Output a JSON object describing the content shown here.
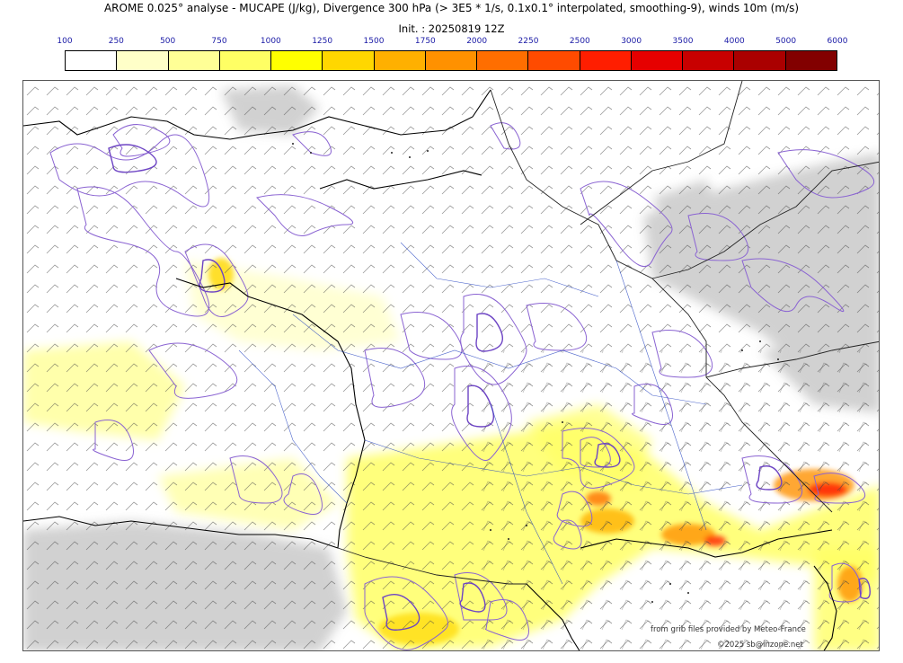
{
  "header": {
    "title": "AROME 0.025° analyse - MUCAPE (J/kg), Divergence 300 hPa (> 3E5 * 1/s, 0.1x0.1° interpolated, smoothing-9), winds 10m (m/s)",
    "init": "Init. : 20250819 12Z"
  },
  "colorbar": {
    "ticks": [
      "100",
      "250",
      "500",
      "750",
      "1000",
      "1250",
      "1500",
      "1750",
      "2000",
      "2250",
      "2500",
      "3000",
      "3500",
      "4000",
      "5000",
      "6000"
    ],
    "colors": [
      "#ffffff",
      "#ffffc8",
      "#ffff96",
      "#ffff64",
      "#ffff00",
      "#ffd700",
      "#ffb000",
      "#ff9100",
      "#ff6e00",
      "#ff4b00",
      "#ff1e00",
      "#e60000",
      "#c80000",
      "#aa0000",
      "#820000",
      "#5a0000"
    ]
  },
  "credits": {
    "source": "from grib files provided by Meteo-France",
    "copyright": "©2025 sb@inzone.net"
  },
  "legend_colors": {
    "divergence_contour": "#8a63d2",
    "coastline": "#000000",
    "border": "#333333",
    "cloud_gray": "#c8c8c8"
  }
}
